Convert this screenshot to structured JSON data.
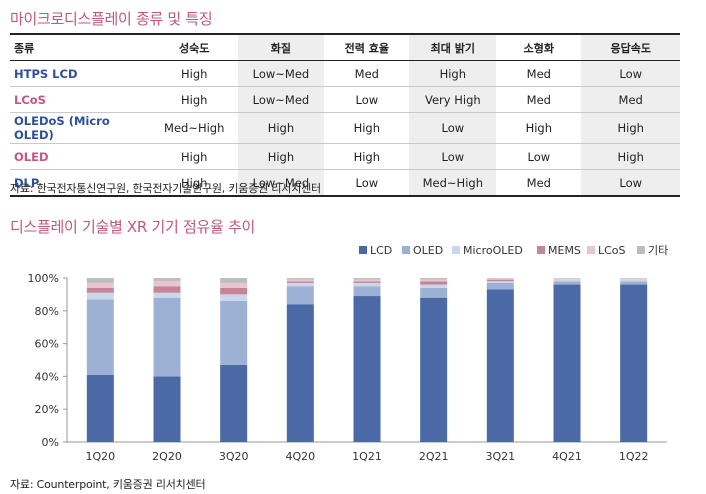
{
  "section1": {
    "title": "마이크로디스플레이 종류 및 특징",
    "headers": [
      "종류",
      "성숙도",
      "화질",
      "전력 효율",
      "최대 밝기",
      "소형화",
      "응답속도"
    ],
    "rows": [
      {
        "name": "HTPS LCD",
        "color": "#2f4f9a",
        "cells": [
          "High",
          "Low~Med",
          "Med",
          "High",
          "Med",
          "Low"
        ]
      },
      {
        "name": "LCoS",
        "color": "#c0587e",
        "cells": [
          "High",
          "Low~Med",
          "Low",
          "Very High",
          "Med",
          "Med"
        ]
      },
      {
        "name": "OLEDoS (Micro OLED)",
        "color": "#2f4f9a",
        "cells": [
          "Med~High",
          "High",
          "High",
          "Low",
          "High",
          "High"
        ]
      },
      {
        "name": "OLED",
        "color": "#c0587e",
        "cells": [
          "High",
          "High",
          "High",
          "Low",
          "Low",
          "High"
        ]
      },
      {
        "name": "DLP",
        "color": "#2f4f9a",
        "cells": [
          "High",
          "Low~Med",
          "Low",
          "Med~High",
          "Med",
          "Low"
        ]
      }
    ],
    "source": "자료: 한국전자통신연구원, 한국전자기술연구원, 키움증권 리서치센터"
  },
  "section2": {
    "title": "디스플레이 기술별 XR 기기 점유율 추이",
    "source": "자료: Counterpoint, 키움증권 리서치센터"
  },
  "chart_data": {
    "type": "bar",
    "stacked": true,
    "title": "디스플레이 기술별 XR 기기 점유율 추이",
    "categories": [
      "1Q20",
      "2Q20",
      "3Q20",
      "4Q20",
      "1Q21",
      "2Q21",
      "3Q21",
      "4Q21",
      "1Q22"
    ],
    "series": [
      {
        "name": "LCD",
        "color": "#4a69a5",
        "values": [
          41,
          40,
          47,
          84,
          89,
          88,
          93,
          96,
          96
        ]
      },
      {
        "name": "OLED",
        "color": "#9cb1d4",
        "values": [
          46,
          48,
          39,
          11,
          6,
          6,
          4,
          2,
          2
        ]
      },
      {
        "name": "MicroOLED",
        "color": "#cbd6ea",
        "values": [
          4,
          3,
          4,
          2,
          2,
          2,
          1,
          1,
          1
        ]
      },
      {
        "name": "MEMS",
        "color": "#c48597",
        "values": [
          3,
          4,
          4,
          1,
          1,
          2,
          1,
          0,
          0
        ]
      },
      {
        "name": "LCoS",
        "color": "#e8c6d0",
        "values": [
          3,
          3,
          3,
          1,
          1,
          1,
          1,
          1,
          1
        ]
      },
      {
        "name": "기타",
        "color": "#bdbdbd",
        "values": [
          3,
          2,
          3,
          1,
          1,
          1,
          0,
          0,
          0
        ]
      }
    ],
    "ylim": [
      0,
      100
    ],
    "yticks": [
      "0%",
      "20%",
      "40%",
      "60%",
      "80%",
      "100%"
    ],
    "xlabel": "",
    "ylabel": "",
    "legend_position": "top-right"
  }
}
